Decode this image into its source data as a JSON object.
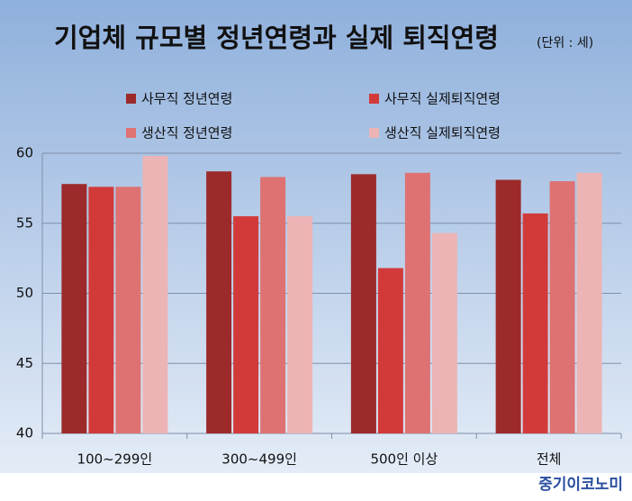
{
  "chart_data": {
    "type": "bar",
    "title": "기업체 규모별 정년연령과 실제 퇴직연령",
    "subtitle": "(단위 : 세)",
    "source": "중기이코노미",
    "categories": [
      "100~299인",
      "300~499인",
      "500인 이상",
      "전체"
    ],
    "series": [
      {
        "name": "사무직 정년연령",
        "color": "#9c2a2a",
        "values": [
          57.8,
          58.7,
          58.5,
          58.1
        ]
      },
      {
        "name": "사무직 실제퇴직연령",
        "color": "#d23a3a",
        "values": [
          57.6,
          55.5,
          51.8,
          55.7
        ]
      },
      {
        "name": "생산직 정년연령",
        "color": "#de7272",
        "values": [
          57.6,
          58.3,
          58.6,
          58.0
        ]
      },
      {
        "name": "생산직 실제퇴직연령",
        "color": "#ecb4b4",
        "values": [
          59.8,
          55.5,
          54.3,
          58.6
        ]
      }
    ],
    "ylim": [
      40,
      60
    ],
    "yticks": [
      40,
      45,
      50,
      55,
      60
    ],
    "grid": true
  }
}
